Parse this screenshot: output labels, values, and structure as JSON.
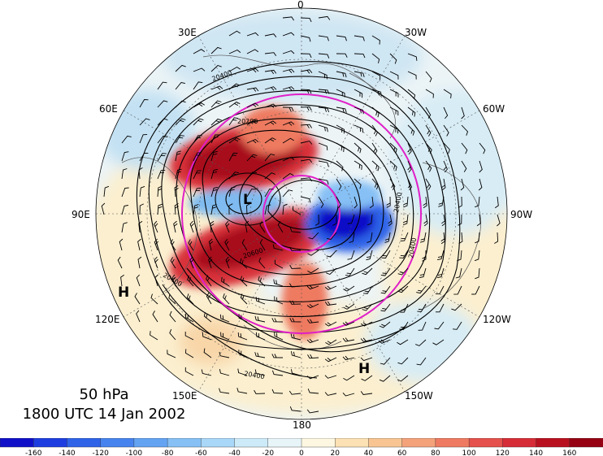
{
  "caption": {
    "level": "50 hPa",
    "time": "1800 UTC 14 Jan 2002"
  },
  "longitude_labels": [
    "0",
    "30W",
    "60W",
    "90W",
    "120W",
    "150W",
    "180",
    "150E",
    "120E",
    "90E",
    "60E",
    "30E"
  ],
  "pressure_centers": [
    {
      "label": "L",
      "name": "low-center"
    },
    {
      "label": "H",
      "name": "high-center-west"
    },
    {
      "label": "H",
      "name": "high-center-south"
    }
  ],
  "contour_labels": [
    "20200",
    "20400",
    "20400",
    "20400",
    "20400",
    "20600",
    "20400"
  ],
  "colorbar": {
    "labels": [
      "-160",
      "-140",
      "-120",
      "-100",
      "-80",
      "-60",
      "-40",
      "-20",
      "0",
      "20",
      "40",
      "60",
      "80",
      "100",
      "120",
      "140",
      "160"
    ],
    "colors": [
      "#1010c8",
      "#1e3de0",
      "#2f63e8",
      "#4683ee",
      "#63a3f2",
      "#86c0f5",
      "#a9d7f7",
      "#cdeaf8",
      "#e8f5f8",
      "#fdf7e2",
      "#fbe1b3",
      "#f8c592",
      "#f4a27a",
      "#ee7a61",
      "#e5514c",
      "#d62c37",
      "#b9101f",
      "#950012"
    ]
  },
  "colors": {
    "contour": "#000000",
    "magenta_circle": "#e020c8",
    "map_background": "#ecf4f6"
  }
}
